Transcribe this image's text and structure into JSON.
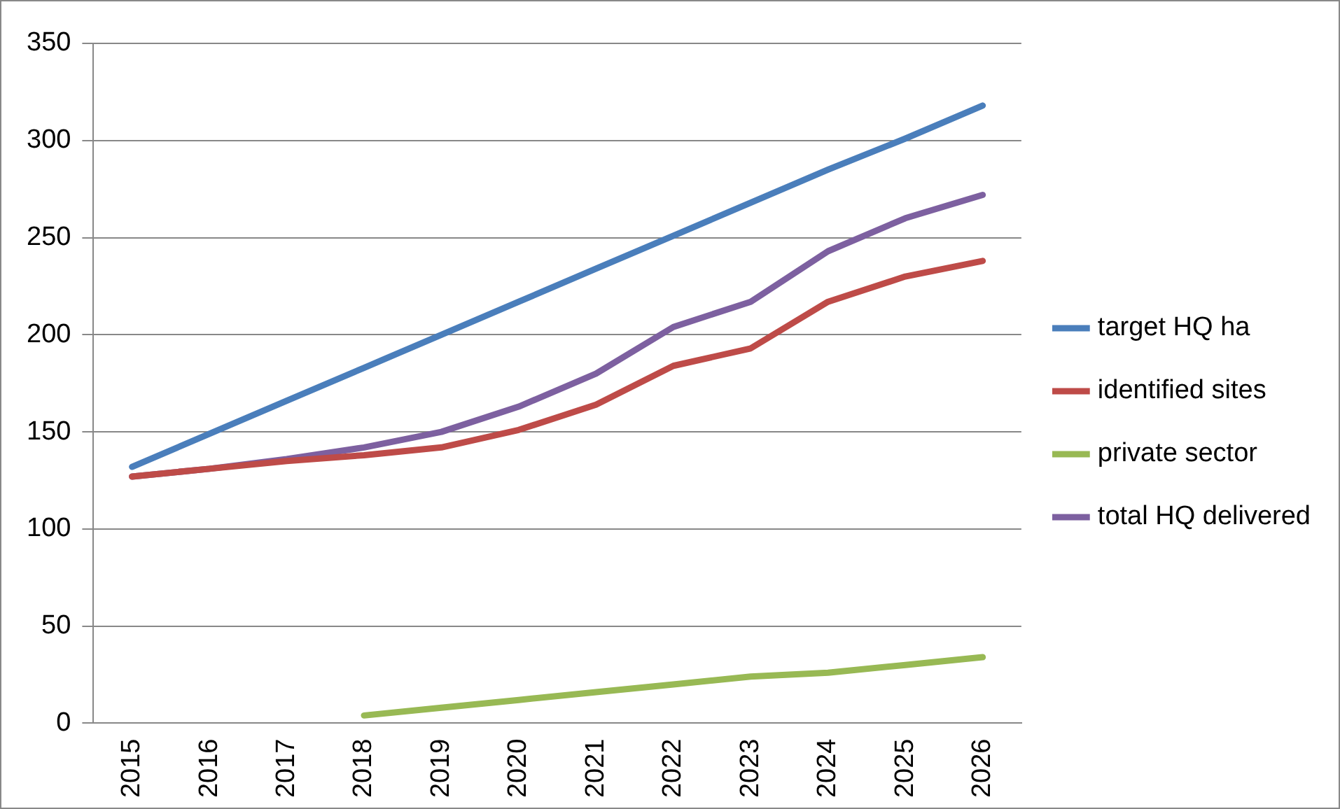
{
  "chart_data": {
    "type": "line",
    "categories": [
      "2015",
      "2016",
      "2017",
      "2018",
      "2019",
      "2020",
      "2021",
      "2022",
      "2023",
      "2024",
      "2025",
      "2026"
    ],
    "series": [
      {
        "name": "target HQ ha",
        "color": "#4a7ebb",
        "values": [
          132,
          149,
          166,
          183,
          200,
          217,
          234,
          251,
          268,
          285,
          301,
          318
        ]
      },
      {
        "name": "identified sites",
        "color": "#be4b48",
        "values": [
          127,
          131,
          135,
          138,
          142,
          151,
          164,
          184,
          193,
          217,
          230,
          238
        ]
      },
      {
        "name": "private sector",
        "color": "#98b954",
        "values": [
          null,
          null,
          null,
          4,
          8,
          12,
          16,
          20,
          24,
          26,
          30,
          34
        ]
      },
      {
        "name": "total HQ delivered",
        "color": "#7d60a0",
        "values": [
          127,
          131,
          136,
          142,
          150,
          163,
          180,
          204,
          217,
          243,
          260,
          272
        ]
      }
    ],
    "ylim": [
      0,
      350
    ],
    "yticks": [
      0,
      50,
      100,
      150,
      200,
      250,
      300,
      350
    ],
    "grid": "y",
    "legend": "right",
    "marker": "none",
    "line_style": "solid"
  }
}
